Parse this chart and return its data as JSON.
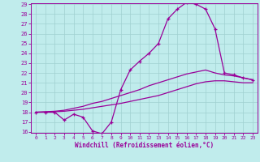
{
  "xlabel": "Windchill (Refroidissement éolien,°C)",
  "bg_color": "#c0ecec",
  "line_color": "#990099",
  "grid_color": "#a0d0d0",
  "ylim": [
    16,
    29
  ],
  "xlim": [
    -0.5,
    23.5
  ],
  "yticks": [
    16,
    17,
    18,
    19,
    20,
    21,
    22,
    23,
    24,
    25,
    26,
    27,
    28,
    29
  ],
  "xticks": [
    0,
    1,
    2,
    3,
    4,
    5,
    6,
    7,
    8,
    9,
    10,
    11,
    12,
    13,
    14,
    15,
    16,
    17,
    18,
    19,
    20,
    21,
    22,
    23
  ],
  "line1_x": [
    0,
    1,
    2,
    3,
    4,
    5,
    6,
    7,
    8,
    9,
    10,
    11,
    12,
    13,
    14,
    15,
    16,
    17,
    18,
    19,
    20,
    21,
    22,
    23
  ],
  "line1_y": [
    18,
    18,
    18,
    17.2,
    17.8,
    17.5,
    16.1,
    15.8,
    17.0,
    20.3,
    22.3,
    23.2,
    24.0,
    25.0,
    27.5,
    28.5,
    29.2,
    29.0,
    28.5,
    26.5,
    22.0,
    21.8,
    21.5,
    21.3
  ],
  "line2_x": [
    0,
    1,
    2,
    3,
    4,
    5,
    6,
    7,
    8,
    9,
    10,
    11,
    12,
    13,
    14,
    15,
    16,
    17,
    18,
    19,
    20,
    21,
    22,
    23
  ],
  "line2_y": [
    18,
    18.05,
    18.1,
    18.2,
    18.4,
    18.6,
    18.9,
    19.1,
    19.4,
    19.7,
    20.0,
    20.3,
    20.7,
    21.0,
    21.3,
    21.6,
    21.9,
    22.1,
    22.3,
    22.0,
    21.8,
    21.7,
    21.5,
    21.3
  ],
  "line3_x": [
    0,
    1,
    2,
    3,
    4,
    5,
    6,
    7,
    8,
    9,
    10,
    11,
    12,
    13,
    14,
    15,
    16,
    17,
    18,
    19,
    20,
    21,
    22,
    23
  ],
  "line3_y": [
    18,
    18.02,
    18.05,
    18.1,
    18.2,
    18.3,
    18.45,
    18.6,
    18.75,
    18.9,
    19.1,
    19.3,
    19.5,
    19.7,
    20.0,
    20.3,
    20.6,
    20.9,
    21.1,
    21.2,
    21.2,
    21.1,
    21.0,
    21.0
  ]
}
